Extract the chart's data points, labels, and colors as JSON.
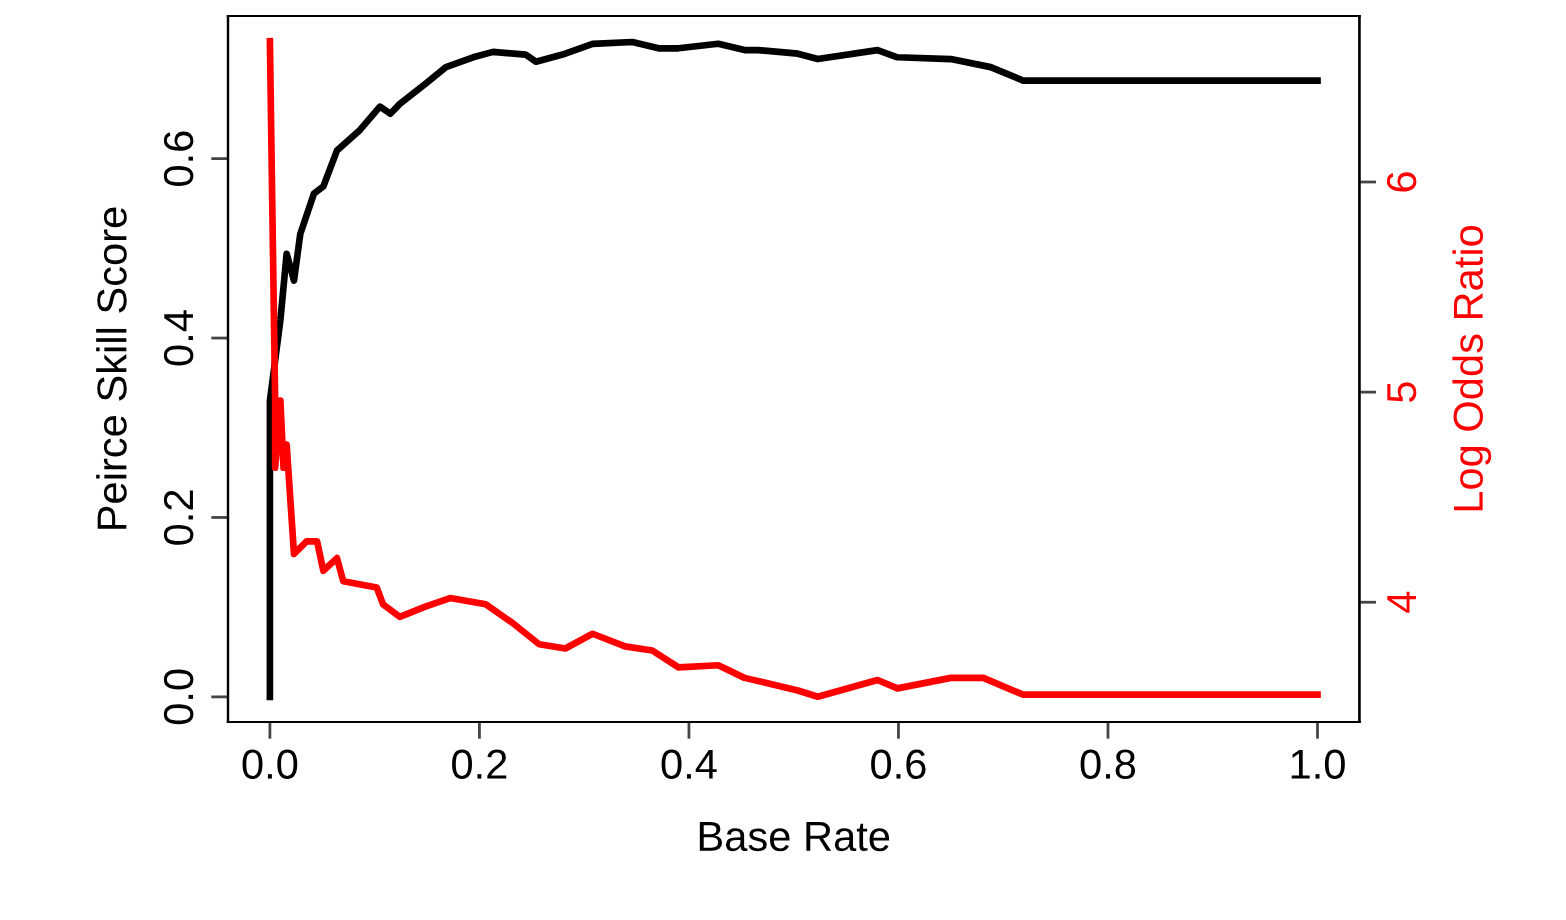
{
  "chart_data": {
    "type": "line",
    "xlabel": "Base Rate",
    "ylabel": "Peirce Skill Score",
    "y2label": "Log Odds Ratio",
    "xlim": [
      -0.04,
      1.04
    ],
    "xticks": [
      {
        "value": 0,
        "label": "0.0"
      },
      {
        "value": 0.2,
        "label": "0.2"
      },
      {
        "value": 0.4,
        "label": "0.4"
      },
      {
        "value": 0.6,
        "label": "0.6"
      },
      {
        "value": 0.8,
        "label": "0.8"
      },
      {
        "value": 1,
        "label": "1.0"
      }
    ],
    "ylim": [
      -0.028,
      0.759
    ],
    "yticks": [
      {
        "value": 0,
        "label": "0.0"
      },
      {
        "value": 0.2,
        "label": "0.2"
      },
      {
        "value": 0.4,
        "label": "0.4"
      },
      {
        "value": 0.6,
        "label": "0.6"
      }
    ],
    "y2lim": [
      3.43,
      6.79
    ],
    "y2ticks": [
      4,
      5,
      6
    ],
    "grid": false,
    "legend": false,
    "series": [
      {
        "color": "#000000",
        "x": [
          0,
          0,
          0.01,
          0.016,
          0.023,
          0.029,
          0.042,
          0.051,
          0.064,
          0.086,
          0.105,
          0.115,
          0.124,
          0.149,
          0.168,
          0.194,
          0.213,
          0.244,
          0.254,
          0.282,
          0.308,
          0.346,
          0.371,
          0.39,
          0.428,
          0.453,
          0.466,
          0.504,
          0.523,
          0.58,
          0.599,
          0.65,
          0.688,
          0.719,
          1
        ],
        "values": [
          0,
          0.33,
          0.42,
          0.494,
          0.464,
          0.516,
          0.561,
          0.569,
          0.609,
          0.632,
          0.658,
          0.65,
          0.661,
          0.684,
          0.702,
          0.713,
          0.719,
          0.716,
          0.708,
          0.717,
          0.728,
          0.73,
          0.723,
          0.723,
          0.728,
          0.721,
          0.721,
          0.717,
          0.711,
          0.721,
          0.713,
          0.711,
          0.702,
          0.687,
          0.687
        ]
      },
      {
        "color": "#ff0000",
        "axis": "y2",
        "x": [
          0,
          0.005,
          0.005,
          0.01,
          0.013,
          0.016,
          0.023,
          0.035,
          0.045,
          0.051,
          0.064,
          0.07,
          0.102,
          0.108,
          0.124,
          0.149,
          0.172,
          0.206,
          0.232,
          0.257,
          0.282,
          0.308,
          0.339,
          0.365,
          0.39,
          0.428,
          0.453,
          0.479,
          0.504,
          0.523,
          0.58,
          0.599,
          0.65,
          0.681,
          0.719,
          1
        ],
        "values": [
          6.67,
          4.96,
          4.64,
          4.96,
          4.64,
          4.75,
          4.23,
          4.29,
          4.29,
          4.15,
          4.21,
          4.1,
          4.07,
          3.99,
          3.93,
          3.98,
          4.02,
          3.99,
          3.9,
          3.8,
          3.78,
          3.85,
          3.79,
          3.77,
          3.69,
          3.7,
          3.64,
          3.61,
          3.58,
          3.55,
          3.63,
          3.59,
          3.64,
          3.64,
          3.56,
          3.56
        ]
      }
    ]
  }
}
